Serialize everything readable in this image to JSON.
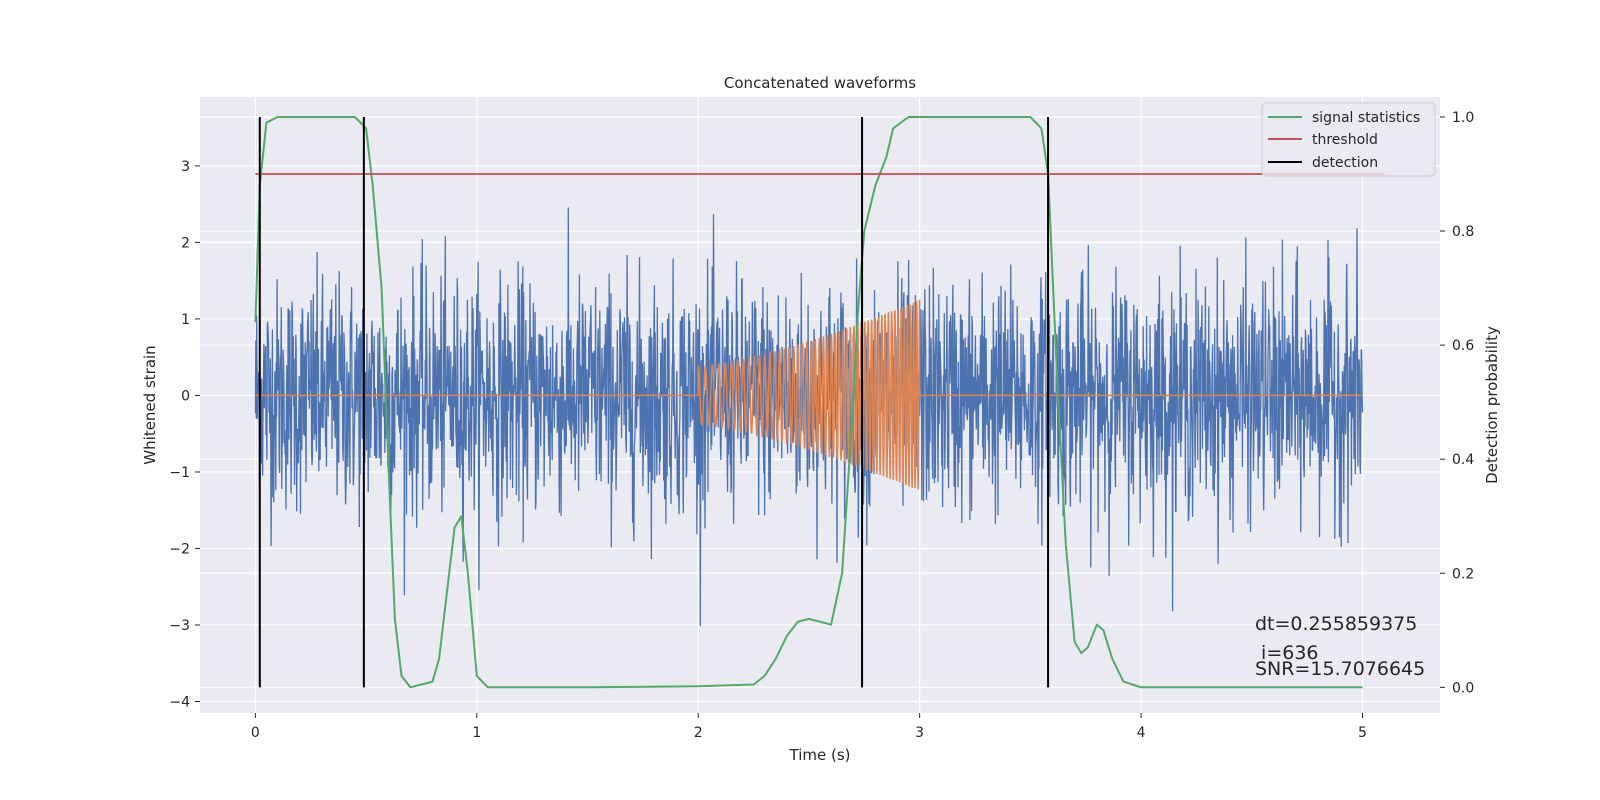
{
  "chart_data": {
    "type": "line",
    "title": "Concatenated waveforms",
    "xlabel": "Time (s)",
    "ylabel": "Whitened strain",
    "ylabel_right": "Detection probability",
    "xlim": [
      -0.25,
      5.35
    ],
    "ylim": [
      -4.15,
      3.9
    ],
    "ylim_right": [
      -0.045,
      1.035
    ],
    "x_ticks": [
      0,
      1,
      2,
      3,
      4,
      5
    ],
    "y_ticks": [
      -4,
      -3,
      -2,
      -1,
      0,
      1,
      2,
      3
    ],
    "y_ticks_right": [
      0.0,
      0.2,
      0.4,
      0.6,
      0.8,
      1.0
    ],
    "x_tick_labels": [
      "0",
      "1",
      "2",
      "3",
      "4",
      "5"
    ],
    "y_tick_labels": [
      "−4",
      "−3",
      "−2",
      "−1",
      "0",
      "1",
      "2",
      "3"
    ],
    "y_tick_labels_right": [
      "0.0",
      "0.2",
      "0.4",
      "0.6",
      "0.8",
      "1.0"
    ],
    "grid": true,
    "legend_position": "top-right",
    "colors": {
      "background": "#EAEAF2",
      "strain": "#4C72B0",
      "template": "#DD8452",
      "signal_statistics": "#55A868",
      "threshold": "#C44E52",
      "detection": "#000000"
    },
    "series": [
      {
        "key": "strain",
        "axis": "left",
        "kind": "noise",
        "x_range": [
          0,
          5
        ],
        "std": 0.75,
        "peak_max": 3.22,
        "peak_min": -3.8,
        "note_values": "dense random whitened strain samples"
      },
      {
        "key": "template",
        "axis": "left",
        "kind": "chirp",
        "x_range": [
          2.0,
          3.0
        ],
        "amplitude_start": 0.38,
        "amplitude_end": 1.25,
        "flat_value": 0
      },
      {
        "name": "signal statistics",
        "axis": "right",
        "x": [
          0.0,
          0.02,
          0.05,
          0.1,
          0.45,
          0.5,
          0.53,
          0.57,
          0.6,
          0.63,
          0.66,
          0.7,
          0.8,
          0.83,
          0.86,
          0.9,
          0.93,
          0.96,
          1.0,
          1.05,
          1.5,
          2.0,
          2.25,
          2.3,
          2.35,
          2.4,
          2.45,
          2.5,
          2.55,
          2.6,
          2.65,
          2.7,
          2.72,
          2.75,
          2.8,
          2.85,
          2.88,
          2.95,
          3.5,
          3.55,
          3.58,
          3.62,
          3.66,
          3.7,
          3.73,
          3.76,
          3.8,
          3.83,
          3.87,
          3.92,
          4.0,
          5.0
        ],
        "values": [
          0.64,
          0.88,
          0.99,
          1.0,
          1.0,
          0.98,
          0.88,
          0.7,
          0.4,
          0.12,
          0.02,
          0.0,
          0.01,
          0.05,
          0.15,
          0.28,
          0.3,
          0.2,
          0.02,
          0.0,
          0.0,
          0.002,
          0.005,
          0.02,
          0.05,
          0.09,
          0.115,
          0.12,
          0.115,
          0.11,
          0.2,
          0.5,
          0.65,
          0.8,
          0.88,
          0.93,
          0.98,
          1.0,
          1.0,
          0.98,
          0.9,
          0.55,
          0.25,
          0.08,
          0.06,
          0.07,
          0.11,
          0.1,
          0.05,
          0.01,
          0.0,
          0.0
        ]
      },
      {
        "name": "threshold",
        "axis": "right",
        "x": [
          0,
          5.1
        ],
        "values": [
          0.9,
          0.9
        ]
      }
    ],
    "detections": [
      0.02,
      0.49,
      2.74,
      3.58
    ],
    "legend": {
      "signal_statistics": "signal statistics",
      "threshold": "threshold",
      "detection": "detection"
    },
    "annotations": {
      "dt": "dt=0.255859375",
      "i": " i=636",
      "snr": "SNR=15.7076645"
    }
  }
}
